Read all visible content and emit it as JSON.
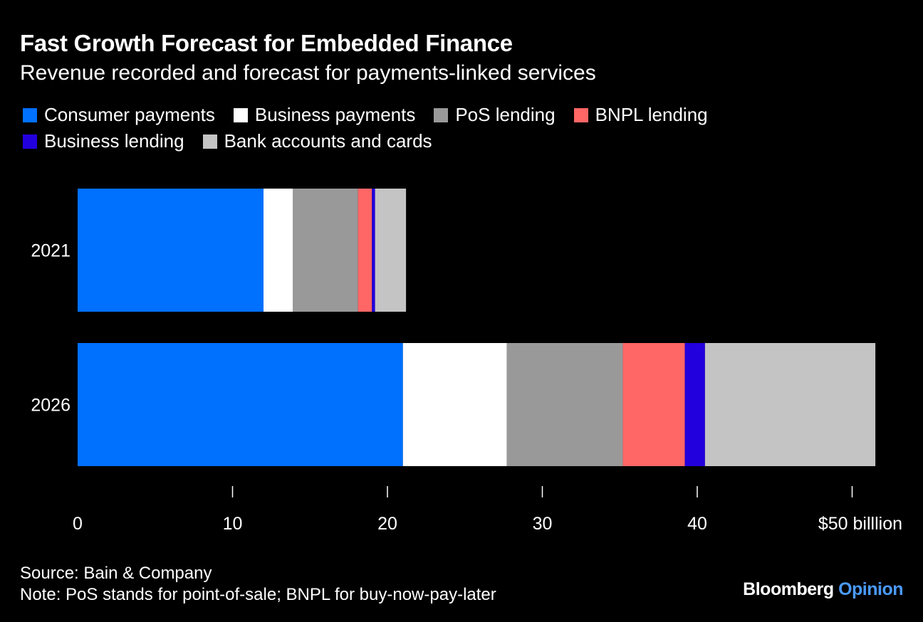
{
  "header": {
    "title": "Fast Growth Forecast for Embedded Finance",
    "subtitle": "Revenue recorded and forecast for payments-linked services"
  },
  "legend": [
    {
      "label": "Consumer payments",
      "color": "#0070ff"
    },
    {
      "label": "Business payments",
      "color": "#ffffff"
    },
    {
      "label": "PoS lending",
      "color": "#999999"
    },
    {
      "label": "BNPL lending",
      "color": "#ff6666"
    },
    {
      "label": "Business lending",
      "color": "#2200dd"
    },
    {
      "label": "Bank accounts and cards",
      "color": "#c4c4c4"
    }
  ],
  "chart_data": {
    "type": "bar",
    "orientation": "horizontal",
    "stacked": true,
    "categories": [
      "2021",
      "2026"
    ],
    "series": [
      {
        "name": "Consumer payments",
        "values": [
          12.0,
          21.0
        ]
      },
      {
        "name": "Business payments",
        "values": [
          1.9,
          6.7
        ]
      },
      {
        "name": "PoS lending",
        "values": [
          4.2,
          7.5
        ]
      },
      {
        "name": "BNPL lending",
        "values": [
          0.9,
          4.0
        ]
      },
      {
        "name": "Business lending",
        "values": [
          0.2,
          1.3
        ]
      },
      {
        "name": "Bank accounts and cards",
        "values": [
          2.0,
          11.0
        ]
      }
    ],
    "x_ticks": [
      "0",
      "10",
      "20",
      "30",
      "40",
      "$50 billlion"
    ],
    "x_tick_values": [
      0,
      10,
      20,
      30,
      40,
      50
    ],
    "xlim": [
      0,
      51.5
    ],
    "grid": false,
    "legend_position": "top-left"
  },
  "footer": {
    "source": "Source: Bain & Company",
    "note": "Note: PoS stands for point-of-sale; BNPL for buy-now-pay-later",
    "brand_main": "Bloomberg",
    "brand_sub": "Opinion"
  }
}
